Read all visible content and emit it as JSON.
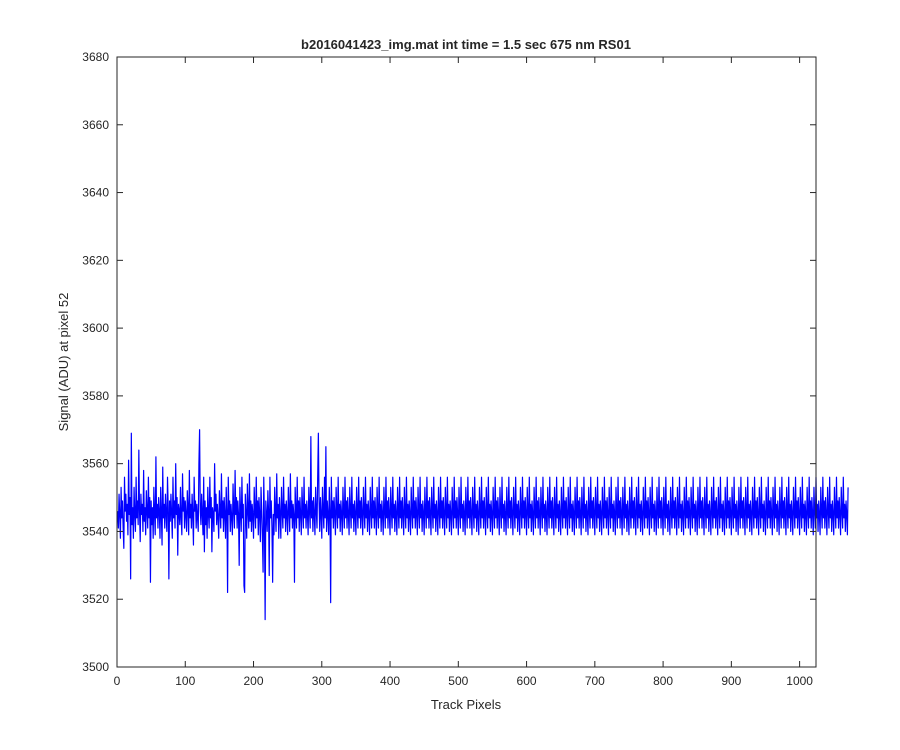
{
  "chart_data": {
    "type": "line",
    "title": "b2016041423_img.mat int time = 1.5 sec  675 nm RS01",
    "xlabel": "Track Pixels",
    "ylabel": "Signal (ADU) at pixel 52",
    "xlim": [
      0,
      1024
    ],
    "ylim": [
      3500,
      3680
    ],
    "xticks": [
      0,
      100,
      200,
      300,
      400,
      500,
      600,
      700,
      800,
      900,
      1000
    ],
    "yticks": [
      3500,
      3520,
      3540,
      3560,
      3580,
      3600,
      3620,
      3640,
      3660,
      3680
    ],
    "grid": false,
    "line_color": "#0000ff",
    "series": [
      {
        "x_start": 1,
        "x_step": 1,
        "values": [
          3546,
          3541,
          3551,
          3545,
          3538,
          3553,
          3544,
          3549,
          3541,
          3535,
          3556,
          3546,
          3551,
          3543,
          3548,
          3539,
          3561,
          3545,
          3550,
          3526,
          3569,
          3542,
          3547,
          3538,
          3553,
          3545,
          3540,
          3556,
          3544,
          3549,
          3542,
          3564,
          3546,
          3537,
          3551,
          3545,
          3548,
          3540,
          3558,
          3543,
          3547,
          3539,
          3552,
          3546,
          3541,
          3556,
          3544,
          3550,
          3525,
          3549,
          3542,
          3547,
          3538,
          3553,
          3545,
          3539,
          3562,
          3544,
          3548,
          3541,
          3550,
          3546,
          3538,
          3553,
          3545,
          3536,
          3559,
          3544,
          3548,
          3541,
          3551,
          3545,
          3540,
          3556,
          3547,
          3526,
          3549,
          3543,
          3551,
          3545,
          3538,
          3556,
          3544,
          3549,
          3541,
          3560,
          3545,
          3550,
          3533,
          3548,
          3546,
          3542,
          3553,
          3544,
          3539,
          3557,
          3546,
          3550,
          3541,
          3549,
          3545,
          3540,
          3552,
          3547,
          3539,
          3558,
          3544,
          3548,
          3541,
          3551,
          3545,
          3536,
          3556,
          3546,
          3549,
          3541,
          3548,
          3544,
          3540,
          3560,
          3570,
          3546,
          3542,
          3551,
          3545,
          3539,
          3556,
          3534,
          3549,
          3542,
          3547,
          3538,
          3553,
          3545,
          3541,
          3556,
          3544,
          3550,
          3534,
          3547,
          3545,
          3540,
          3560,
          3546,
          3551,
          3542,
          3548,
          3544,
          3538,
          3552,
          3546,
          3541,
          3557,
          3544,
          3549,
          3540,
          3550,
          3545,
          3538,
          3553,
          3546,
          3522,
          3556,
          3545,
          3549,
          3540,
          3548,
          3544,
          3539,
          3554,
          3546,
          3541,
          3558,
          3545,
          3550,
          3541,
          3549,
          3545,
          3530,
          3553,
          3546,
          3540,
          3556,
          3544,
          3548,
          3524,
          3522,
          3551,
          3545,
          3538,
          3554,
          3546,
          3541,
          3557,
          3543,
          3549,
          3540,
          3548,
          3545,
          3538,
          3553,
          3546,
          3541,
          3556,
          3544,
          3549,
          3539,
          3550,
          3545,
          3537,
          3553,
          3546,
          3538,
          3528,
          3556,
          3543,
          3514,
          3549,
          3545,
          3540,
          3552,
          3546,
          3527,
          3556,
          3544,
          3549,
          3541,
          3525,
          3545,
          3539,
          3553,
          3546,
          3540,
          3557,
          3544,
          3548,
          3538,
          3550,
          3545,
          3538,
          3553,
          3546,
          3541,
          3556,
          3544,
          3548,
          3540,
          3549,
          3545,
          3539,
          3553,
          3546,
          3540,
          3557,
          3544,
          3549,
          3541,
          3548,
          3545,
          3525,
          3553,
          3546,
          3541,
          3556,
          3544,
          3549,
          3540,
          3550,
          3545,
          3539,
          3553,
          3546,
          3541,
          3556,
          3544,
          3548,
          3541,
          3549,
          3545,
          3539,
          3553,
          3546,
          3541,
          3568,
          3544,
          3549,
          3540,
          3550,
          3545,
          3539,
          3553,
          3546,
          3541,
          3556,
          3569,
          3549,
          3540,
          3550,
          3545,
          3538,
          3553,
          3546,
          3541,
          3556,
          3544,
          3565,
          3540,
          3549,
          3545,
          3539,
          3553,
          3546,
          3519,
          3556,
          3544,
          3549,
          3541,
          3550,
          3545,
          3539,
          3553,
          3546,
          3541,
          3556,
          3544,
          3548,
          3540,
          3549,
          3545,
          3539,
          3553,
          3546,
          3541,
          3556,
          3544,
          3549,
          3541,
          3550,
          3545,
          3539,
          3553,
          3546,
          3541,
          3556,
          3544,
          3548,
          3540,
          3549,
          3545,
          3539,
          3553,
          3546,
          3541,
          3556,
          3544,
          3549,
          3541,
          3550,
          3545,
          3539,
          3553,
          3546,
          3541,
          3556,
          3544,
          3548,
          3540,
          3549,
          3545,
          3539,
          3553,
          3546,
          3541,
          3556,
          3544,
          3549,
          3541,
          3550,
          3545,
          3539,
          3553,
          3546,
          3541,
          3556,
          3544,
          3548,
          3540,
          3549,
          3545,
          3539,
          3553,
          3546,
          3541,
          3556,
          3544,
          3549,
          3541,
          3550,
          3545,
          3539,
          3553,
          3546,
          3541,
          3556,
          3544,
          3548,
          3540,
          3549,
          3545,
          3539,
          3553,
          3546,
          3541,
          3556,
          3544,
          3549,
          3541,
          3550,
          3545,
          3539,
          3553,
          3546,
          3541,
          3556,
          3544,
          3548,
          3540,
          3549,
          3545,
          3539,
          3553,
          3546,
          3541,
          3556,
          3544,
          3549,
          3541,
          3550,
          3545,
          3539,
          3553,
          3546,
          3541,
          3556,
          3544,
          3548,
          3540,
          3549,
          3545,
          3539,
          3553,
          3546,
          3541,
          3556,
          3544,
          3549,
          3541,
          3550,
          3545,
          3539,
          3553,
          3546,
          3541,
          3556,
          3544,
          3548,
          3540,
          3549,
          3545,
          3539,
          3553,
          3546,
          3541,
          3556,
          3544,
          3549,
          3541,
          3550,
          3545,
          3539,
          3553,
          3546,
          3541,
          3556,
          3544,
          3548,
          3540,
          3549,
          3545,
          3539,
          3553,
          3546,
          3541,
          3556,
          3544,
          3549,
          3541,
          3550,
          3545,
          3539,
          3553,
          3546,
          3541,
          3556,
          3544,
          3548,
          3540,
          3549,
          3545,
          3539,
          3553,
          3546,
          3541,
          3556,
          3544,
          3549,
          3541,
          3550,
          3545,
          3539,
          3553,
          3546,
          3541,
          3556,
          3544,
          3548,
          3540,
          3549,
          3545,
          3539,
          3553,
          3546,
          3541,
          3556,
          3544,
          3549,
          3541,
          3550,
          3545,
          3539,
          3553,
          3546,
          3541,
          3556,
          3544,
          3548,
          3540,
          3549,
          3545,
          3539,
          3553,
          3546,
          3541,
          3556,
          3544,
          3549,
          3541,
          3550,
          3545,
          3539,
          3553,
          3546,
          3541,
          3556,
          3544,
          3548,
          3540,
          3549,
          3545,
          3539,
          3553,
          3546,
          3541,
          3556,
          3544,
          3549,
          3541,
          3550,
          3545,
          3539,
          3553,
          3546,
          3541,
          3556,
          3544,
          3548,
          3540,
          3549,
          3545,
          3539,
          3553,
          3546,
          3541,
          3556,
          3544,
          3549,
          3541,
          3550,
          3545,
          3539,
          3553,
          3546,
          3541,
          3556,
          3544,
          3548,
          3540,
          3549,
          3545,
          3539,
          3553,
          3546,
          3541,
          3556,
          3544,
          3549,
          3541,
          3550,
          3545,
          3539,
          3553,
          3546,
          3541,
          3556,
          3544,
          3548,
          3540,
          3549,
          3545,
          3539,
          3553,
          3546,
          3541,
          3556,
          3544,
          3549,
          3541,
          3550,
          3545,
          3539,
          3553,
          3546,
          3541,
          3556,
          3544,
          3548,
          3540,
          3549,
          3545,
          3539,
          3553,
          3546,
          3541,
          3556,
          3544,
          3549,
          3541,
          3550,
          3545,
          3539,
          3553,
          3546,
          3541,
          3556,
          3544,
          3548,
          3540,
          3549,
          3545,
          3539,
          3553,
          3546,
          3541,
          3556,
          3544,
          3549,
          3541,
          3550,
          3545,
          3539,
          3553,
          3546,
          3541,
          3556,
          3544,
          3548,
          3540,
          3549,
          3545,
          3539,
          3553,
          3546,
          3541,
          3556,
          3544,
          3549,
          3541,
          3550,
          3545,
          3539,
          3553,
          3546,
          3541,
          3556,
          3544,
          3548,
          3540,
          3549,
          3545,
          3539,
          3553,
          3546,
          3541,
          3556,
          3544,
          3549,
          3541,
          3550,
          3545,
          3539,
          3553,
          3546,
          3541,
          3556,
          3544,
          3548,
          3540,
          3549,
          3545,
          3539,
          3553,
          3546,
          3541,
          3556,
          3544,
          3549,
          3541,
          3550,
          3545,
          3539,
          3553,
          3546,
          3541,
          3556,
          3544,
          3548,
          3540,
          3549,
          3545,
          3539,
          3553,
          3546,
          3541,
          3556,
          3544,
          3549,
          3541,
          3550,
          3545,
          3539,
          3553,
          3546,
          3541,
          3556,
          3544,
          3548,
          3540,
          3549,
          3545,
          3539,
          3553,
          3546,
          3541,
          3556,
          3544,
          3549,
          3541,
          3550,
          3545,
          3539,
          3553,
          3546,
          3541,
          3556,
          3544,
          3548,
          3540,
          3549,
          3545,
          3539,
          3553,
          3546,
          3541,
          3556,
          3544,
          3549,
          3541,
          3550,
          3545,
          3539,
          3553,
          3546,
          3541,
          3556,
          3544,
          3548,
          3540,
          3549,
          3545,
          3539,
          3553,
          3546,
          3541,
          3556,
          3544,
          3549,
          3541,
          3550,
          3545,
          3539,
          3553,
          3546,
          3541,
          3556,
          3544,
          3548,
          3540,
          3549,
          3545,
          3539,
          3553,
          3546,
          3541,
          3556,
          3544,
          3549,
          3541,
          3550,
          3545,
          3539,
          3553,
          3546,
          3541,
          3556,
          3544,
          3548,
          3540,
          3549,
          3545,
          3539,
          3553,
          3546,
          3541,
          3556,
          3544,
          3549,
          3541,
          3550,
          3545,
          3539,
          3553,
          3546,
          3541,
          3556,
          3544,
          3548,
          3540,
          3549,
          3545,
          3539,
          3553,
          3546,
          3541,
          3556,
          3544,
          3549,
          3541,
          3550,
          3545,
          3539,
          3553,
          3546,
          3541,
          3556,
          3544,
          3548,
          3540,
          3549,
          3545,
          3539,
          3553,
          3546,
          3541,
          3556,
          3544,
          3549,
          3541,
          3550,
          3545,
          3539,
          3553,
          3546,
          3541,
          3556,
          3544,
          3548,
          3540,
          3549,
          3545,
          3539,
          3553,
          3546,
          3541,
          3556,
          3544,
          3549,
          3541,
          3550,
          3545,
          3539,
          3553,
          3546,
          3541,
          3556,
          3544,
          3548,
          3540,
          3549,
          3545,
          3539,
          3553,
          3546,
          3541,
          3556,
          3544,
          3549,
          3541,
          3550,
          3545,
          3539,
          3553,
          3546,
          3541,
          3556,
          3544,
          3548,
          3540,
          3549,
          3545,
          3539,
          3553,
          3546,
          3541,
          3556,
          3544,
          3549,
          3541,
          3550,
          3545,
          3539,
          3553,
          3546,
          3541,
          3556,
          3544,
          3548,
          3540,
          3549,
          3545,
          3539,
          3553,
          3546,
          3541,
          3556,
          3544,
          3549,
          3541,
          3550,
          3545,
          3539,
          3553,
          3546,
          3541,
          3556,
          3544,
          3548,
          3540,
          3549,
          3545,
          3539,
          3553,
          3546,
          3541,
          3556,
          3544,
          3549,
          3541,
          3550,
          3545,
          3539,
          3553,
          3546,
          3541,
          3556,
          3544,
          3548,
          3540,
          3549,
          3545,
          3539,
          3553,
          3546,
          3541,
          3556,
          3544,
          3549,
          3541,
          3550,
          3545,
          3539,
          3553,
          3546,
          3541,
          3556,
          3544,
          3548,
          3540,
          3549,
          3545,
          3539,
          3553,
          3546,
          3541,
          3556,
          3544,
          3549,
          3541,
          3550,
          3545,
          3539,
          3553,
          3546,
          3541,
          3556,
          3544,
          3548,
          3540,
          3549,
          3545,
          3539,
          3553,
          3546,
          3541,
          3556,
          3544,
          3549,
          3541,
          3550,
          3545,
          3539,
          3553,
          3546,
          3541,
          3556,
          3544,
          3548,
          3540,
          3549,
          3545,
          3539,
          3553
        ]
      }
    ]
  }
}
